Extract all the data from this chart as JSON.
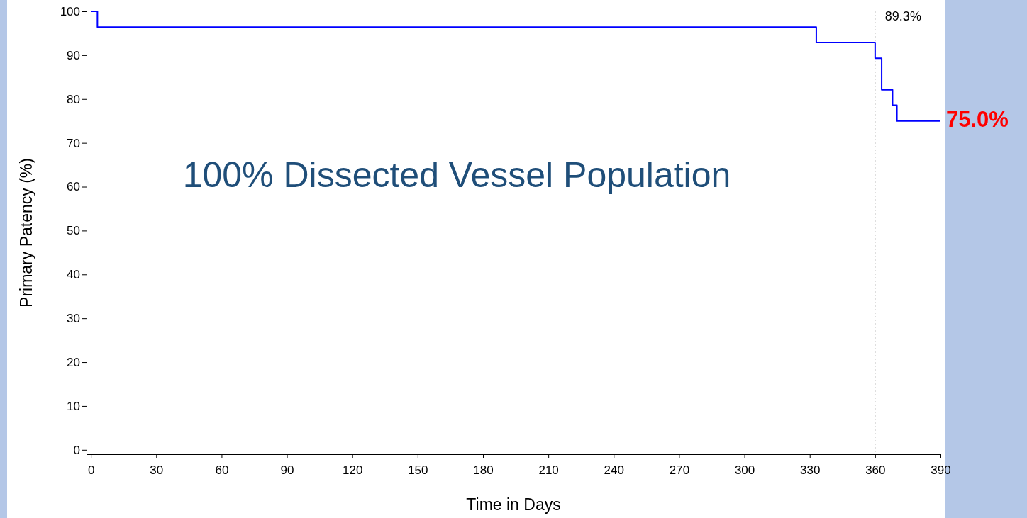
{
  "chart_data": {
    "type": "step",
    "title": "100% Dissected Vessel Population",
    "xlabel": "Time in Days",
    "ylabel": "Primary Patency (%)",
    "x": [
      0,
      3,
      333,
      360,
      363,
      368,
      370,
      390
    ],
    "series": [
      {
        "color": "#0000ff",
        "values": [
          100,
          96.4,
          92.9,
          89.3,
          82.1,
          78.6,
          75.0,
          75.0
        ]
      }
    ],
    "xlim": [
      -2,
      390
    ],
    "xticks": [
      0,
      30,
      60,
      90,
      120,
      150,
      180,
      210,
      240,
      270,
      300,
      330,
      360,
      390
    ],
    "ylim": [
      -1,
      100
    ],
    "yticks": [
      0,
      10,
      20,
      30,
      40,
      50,
      60,
      70,
      80,
      90,
      100
    ],
    "ref_lines": [
      {
        "axis": "x",
        "value": 360,
        "color": "#a0a0a0",
        "line_style": "dotted"
      }
    ],
    "annotations": [
      "89.3%",
      {
        "text": "75.0%",
        "x": 390,
        "y": 75.0
      }
    ],
    "grid": false,
    "marker": "none",
    "line_style": "solid"
  }
}
